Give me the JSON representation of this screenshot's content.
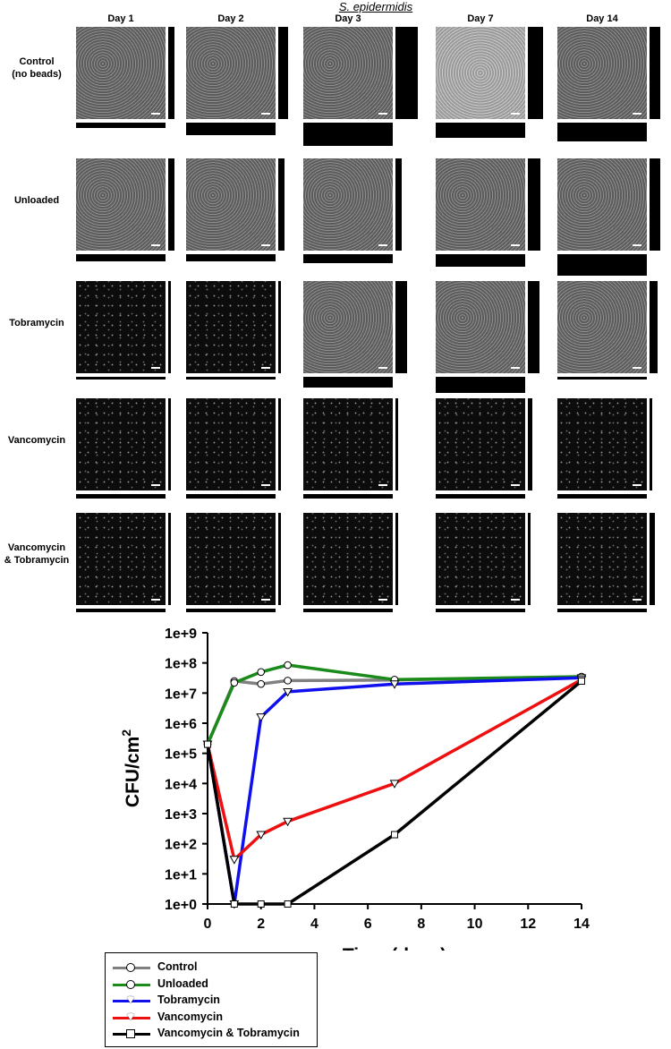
{
  "figure": {
    "title": "S. epidermidis",
    "days": [
      "Day 1",
      "Day 2",
      "Day 3",
      "Day 7",
      "Day 14"
    ],
    "treatments": [
      {
        "label_line1": "Control",
        "label_line2": "(no beads)",
        "tone": "gray"
      },
      {
        "label_line1": "Unloaded",
        "label_line2": "",
        "tone": "gray"
      },
      {
        "label_line1": "Tobramycin",
        "label_line2": "",
        "tone": "mixed"
      },
      {
        "label_line1": "Vancomycin",
        "label_line2": "",
        "tone": "dark"
      },
      {
        "label_line1": "Vancomycin",
        "label_line2": "& Tobramycin",
        "tone": "dark"
      }
    ]
  },
  "chart_data": {
    "type": "line",
    "xlabel": "Time (days)",
    "ylabel": "CFU/cm2",
    "ylabel_base": "CFU/cm",
    "ylabel_sup": "2",
    "yscale": "log",
    "xlim": [
      0,
      14
    ],
    "ylim": [
      1,
      1000000000
    ],
    "xticks": [
      "0",
      "2",
      "4",
      "6",
      "8",
      "10",
      "12",
      "14"
    ],
    "yticks": [
      "1e+0",
      "1e+1",
      "1e+2",
      "1e+3",
      "1e+4",
      "1e+5",
      "1e+6",
      "1e+7",
      "1e+8",
      "1e+9"
    ],
    "legend_position": "bottom-left",
    "series": [
      {
        "name": "Control",
        "color": "#808080",
        "marker": "circle",
        "x": [
          0,
          1,
          2,
          3,
          7,
          14
        ],
        "y": [
          200000,
          25000000,
          20000000,
          26000000,
          27000000,
          35000000
        ]
      },
      {
        "name": "Unloaded",
        "color": "#1a8a1a",
        "marker": "circle",
        "x": [
          0,
          1,
          2,
          3,
          7,
          14
        ],
        "y": [
          200000,
          22000000,
          50000000,
          85000000,
          28000000,
          35000000
        ]
      },
      {
        "name": "Tobramycin",
        "color": "#1010ee",
        "marker": "triangle-down",
        "x": [
          0,
          1,
          2,
          3,
          7,
          14
        ],
        "y": [
          200000,
          1,
          1600000,
          11000000,
          20000000,
          32000000
        ]
      },
      {
        "name": "Vancomycin",
        "color": "#ee1010",
        "marker": "triangle-down",
        "x": [
          0,
          1,
          2,
          3,
          7,
          14
        ],
        "y": [
          200000,
          30,
          200,
          550,
          10000,
          28000000
        ]
      },
      {
        "name": "Vancomycin & Tobramycin",
        "color": "#000000",
        "marker": "square",
        "x": [
          0,
          1,
          2,
          3,
          7,
          14
        ],
        "y": [
          200000,
          1,
          1,
          1,
          200,
          25000000
        ]
      }
    ]
  }
}
